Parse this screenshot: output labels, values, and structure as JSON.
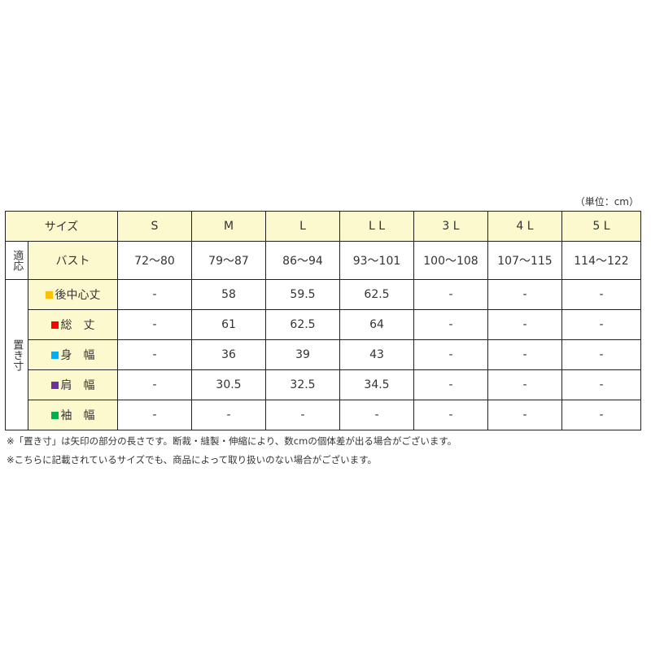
{
  "unit": "（単位：cm）",
  "header": {
    "label": "サイズ",
    "sizes": [
      "S",
      "M",
      "L",
      "L L",
      "3 L",
      "4 L",
      "5 L"
    ]
  },
  "fit": {
    "group": "適応",
    "label": "バスト",
    "values": [
      "72〜80",
      "79〜87",
      "86〜94",
      "93〜101",
      "100〜108",
      "107〜115",
      "114〜122"
    ]
  },
  "measure": {
    "group": "置き寸",
    "rows": [
      {
        "label": "後中心丈",
        "color": "#ffc000",
        "values": [
          "-",
          "58",
          "59.5",
          "62.5",
          "-",
          "-",
          "-"
        ]
      },
      {
        "label": "総　丈",
        "color": "#ff0000",
        "values": [
          "-",
          "61",
          "62.5",
          "64",
          "-",
          "-",
          "-"
        ]
      },
      {
        "label": "身　幅",
        "color": "#00b0f0",
        "values": [
          "-",
          "36",
          "39",
          "43",
          "-",
          "-",
          "-"
        ]
      },
      {
        "label": "肩　幅",
        "color": "#7030a0",
        "values": [
          "-",
          "30.5",
          "32.5",
          "34.5",
          "-",
          "-",
          "-"
        ]
      },
      {
        "label": "袖　幅",
        "color": "#00b050",
        "values": [
          "-",
          "-",
          "-",
          "-",
          "-",
          "-",
          "-"
        ]
      }
    ]
  },
  "notes": [
    "※「置き寸」は矢印の部分の長さです。断裁・縫製・伸縮により、数cmの個体差が出る場合がございます。",
    "※こちらに記載されているサイズでも、商品によって取り扱いのない場合がございます。"
  ]
}
